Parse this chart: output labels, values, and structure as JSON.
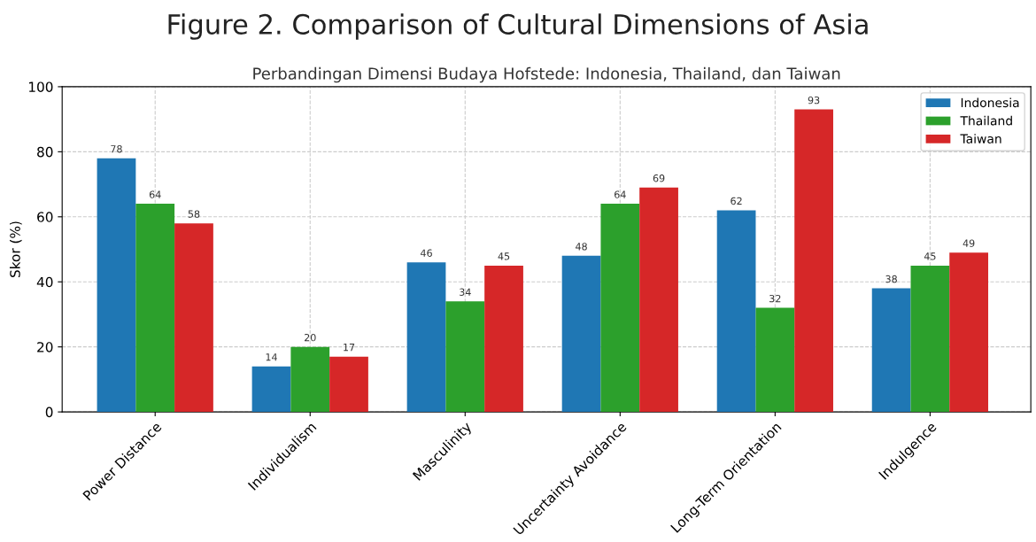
{
  "chart_data": {
    "type": "bar",
    "title": "Figure 2. Comparison of Cultural Dimensions of Asia",
    "subtitle": "Perbandingan Dimensi Budaya Hofstede: Indonesia, Thailand, dan Taiwan",
    "ylabel": "Skor (%)",
    "categories": [
      "Power Distance",
      "Individualism",
      "Masculinity",
      "Uncertainty Avoidance",
      "Long-Term Orientation",
      "Indulgence"
    ],
    "series": [
      {
        "name": "Indonesia",
        "color": "#1f77b4",
        "values": [
          78,
          14,
          46,
          48,
          62,
          38
        ]
      },
      {
        "name": "Thailand",
        "color": "#2ca02c",
        "values": [
          64,
          20,
          34,
          64,
          32,
          45
        ]
      },
      {
        "name": "Taiwan",
        "color": "#d62728",
        "values": [
          58,
          17,
          45,
          69,
          93,
          49
        ]
      }
    ],
    "ylim": [
      0,
      100
    ],
    "yticks": [
      0,
      20,
      40,
      60,
      80,
      100
    ],
    "grid": true,
    "legend": "top right",
    "data_labels": true
  }
}
